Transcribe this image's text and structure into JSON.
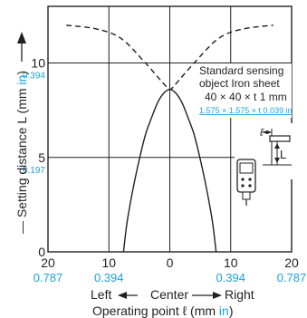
{
  "chart_data": {
    "type": "line",
    "title": "",
    "xlabel": {
      "left": "Left",
      "center": "Center",
      "right": "Right",
      "main": "Operating point ℓ (mm ",
      "unit": "in",
      "close": ")"
    },
    "ylabel": {
      "main": "— Setting distance L (mm ",
      "unit": "in",
      "close": ")"
    },
    "xlim": [
      -20,
      20
    ],
    "ylim": [
      0,
      13
    ],
    "grid": true,
    "x_ticks": [
      {
        "value": -20,
        "label": "20",
        "inch": "0.787"
      },
      {
        "value": -10,
        "label": "10",
        "inch": "0.394"
      },
      {
        "value": 0,
        "label": "0",
        "inch": ""
      },
      {
        "value": 10,
        "label": "10",
        "inch": "0.394"
      },
      {
        "value": 20,
        "label": "20",
        "inch": "0.787"
      }
    ],
    "y_ticks": [
      {
        "value": 0,
        "label": "0",
        "inch": ""
      },
      {
        "value": 5,
        "label": "5",
        "inch": "0.197"
      },
      {
        "value": 10,
        "label": "10",
        "inch": "0.394"
      }
    ],
    "series": [
      {
        "style": "solid",
        "x": [
          -7.6,
          -7.0,
          -6.0,
          -5.0,
          -4.0,
          -3.0,
          -2.0,
          -1.0,
          0.0,
          1.0,
          2.0,
          3.0,
          4.0,
          5.0,
          6.0,
          7.0,
          7.6
        ],
        "y": [
          0,
          1.6,
          3.4,
          4.9,
          6.2,
          7.1,
          7.9,
          8.4,
          8.6,
          8.4,
          7.9,
          7.1,
          6.2,
          4.9,
          3.4,
          1.6,
          0
        ]
      },
      {
        "style": "dashed",
        "x": [
          -17.0,
          -12.0,
          -8.0,
          -4.0,
          -1.0,
          0.0,
          1.0,
          4.0,
          8.0,
          12.0,
          17.0
        ],
        "y": [
          12.0,
          11.8,
          11.3,
          10.0,
          8.9,
          8.6,
          8.9,
          10.0,
          11.3,
          11.8,
          12.0
        ]
      }
    ],
    "annotation": {
      "line1": "Standard sensing",
      "line2": "object Iron sheet",
      "line3": "40 × 40 × t 1 mm",
      "line4": "1.575 × 1.575 × t 0.039 in",
      "ell": "ℓ",
      "L": "L"
    },
    "colors": {
      "ink": "#231f20",
      "accent": "#1aa3dc"
    }
  }
}
